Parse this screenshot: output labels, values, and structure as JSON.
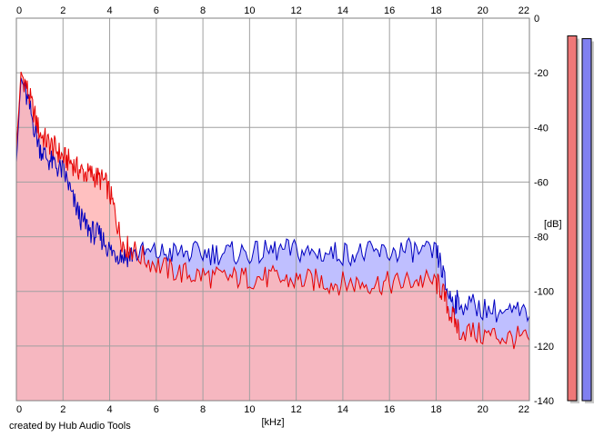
{
  "credit": "created by Hub Audio Tools",
  "colors": {
    "background": "#ffffff",
    "grid": "#a0a0a0",
    "red_line": "#e60000",
    "red_fill": "#ffb5b5",
    "blue_line": "#0000c0",
    "blue_fill": "#bfbfff",
    "meter_red": "#ef7878",
    "meter_blue": "#8080f0"
  },
  "chart_data": {
    "type": "area",
    "xlabel": "[kHz]",
    "ylabel": "[dB]",
    "xlim": [
      0,
      22
    ],
    "ylim": [
      -140,
      0
    ],
    "x_ticks": [
      "0",
      "2",
      "4",
      "6",
      "8",
      "10",
      "12",
      "14",
      "16",
      "18",
      "20",
      "22"
    ],
    "y_ticks": [
      "0",
      "-20",
      "-40",
      "-60",
      "-80",
      "-100",
      "-120",
      "-140"
    ],
    "grid": true,
    "x": [
      0,
      0.2,
      0.4,
      0.6,
      0.8,
      1.0,
      1.2,
      1.4,
      1.6,
      1.8,
      2.0,
      2.2,
      2.4,
      2.6,
      2.8,
      3.0,
      3.2,
      3.4,
      3.6,
      3.8,
      4.0,
      4.2,
      4.4,
      4.6,
      4.8,
      5.0,
      5.5,
      6.0,
      6.5,
      7.0,
      7.5,
      8.0,
      8.5,
      9.0,
      9.5,
      10.0,
      10.5,
      11.0,
      11.5,
      12.0,
      12.5,
      13.0,
      13.5,
      14.0,
      14.5,
      15.0,
      15.5,
      16.0,
      16.5,
      17.0,
      17.5,
      18.0,
      18.2,
      18.4,
      18.6,
      18.8,
      19.0,
      19.5,
      20.0,
      20.5,
      21.0,
      21.5,
      22.0
    ],
    "series": [
      {
        "values": [
          -48,
          -20,
          -24,
          -30,
          -36,
          -42,
          -44,
          -46,
          -47,
          -49,
          -51,
          -52,
          -53,
          -55,
          -56,
          -57,
          -57,
          -58,
          -59,
          -60,
          -64,
          -70,
          -78,
          -83,
          -84,
          -85,
          -88,
          -90,
          -92,
          -93,
          -94,
          -94,
          -95,
          -95,
          -95,
          -95,
          -95,
          -95,
          -96,
          -96,
          -96,
          -96,
          -97,
          -97,
          -97,
          -97,
          -97,
          -97,
          -97,
          -96,
          -96,
          -97,
          -99,
          -103,
          -108,
          -111,
          -114,
          -115,
          -116,
          -116,
          -117,
          -117,
          -118
        ]
      },
      {
        "values": [
          -52,
          -22,
          -28,
          -34,
          -41,
          -47,
          -50,
          -52,
          -53,
          -55,
          -56,
          -60,
          -66,
          -70,
          -74,
          -76,
          -78,
          -79,
          -80,
          -82,
          -85,
          -86,
          -86,
          -87,
          -87,
          -86,
          -86,
          -86,
          -86,
          -86,
          -86,
          -86,
          -86,
          -86,
          -86,
          -86,
          -86,
          -85,
          -85,
          -85,
          -86,
          -86,
          -86,
          -86,
          -86,
          -86,
          -86,
          -86,
          -85,
          -85,
          -86,
          -86,
          -90,
          -98,
          -102,
          -104,
          -104,
          -105,
          -106,
          -107,
          -108,
          -108,
          -109
        ]
      }
    ],
    "level_meters": [
      {
        "value": -6.5
      },
      {
        "value": -7.5
      }
    ]
  }
}
